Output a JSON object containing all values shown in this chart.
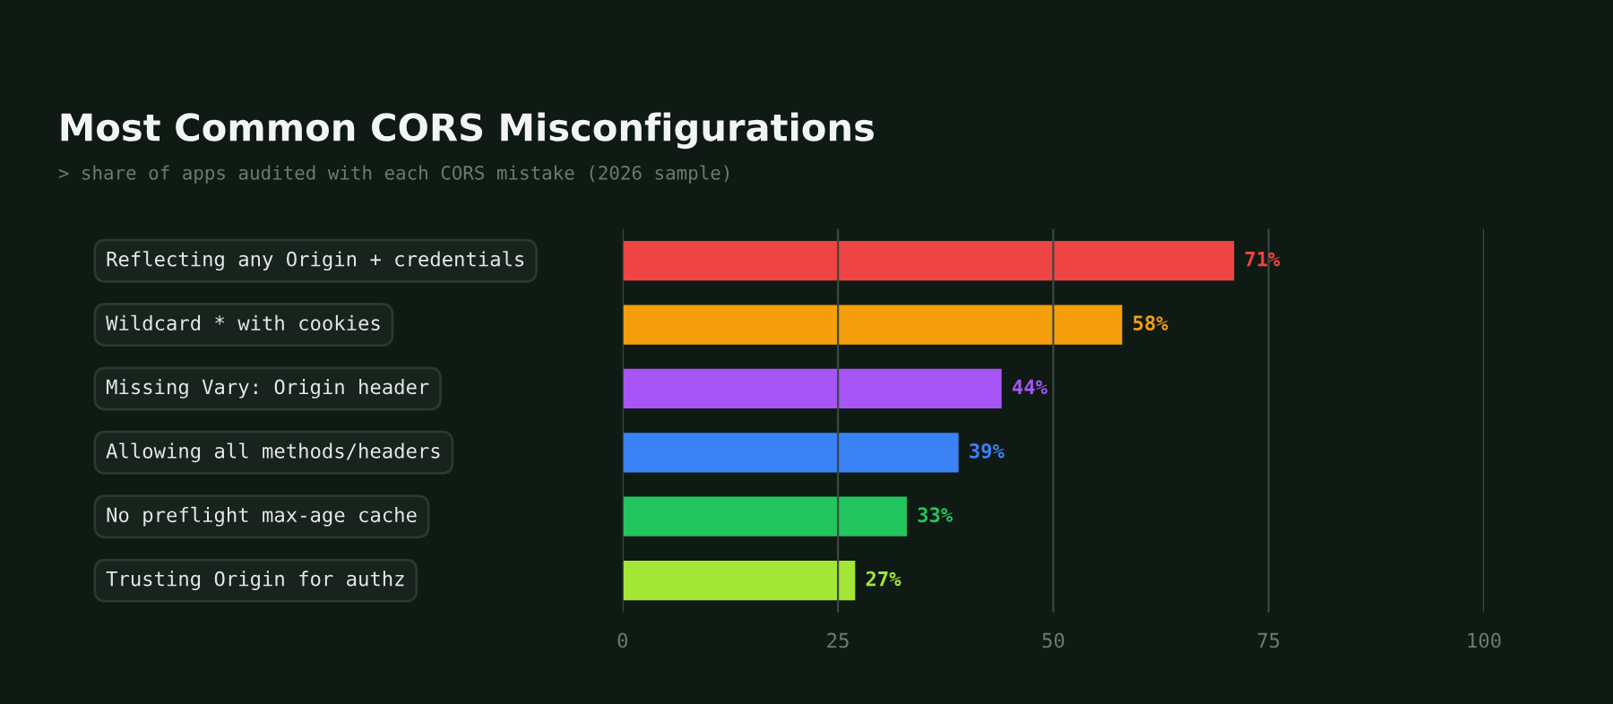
{
  "chart_data": {
    "type": "bar",
    "orientation": "horizontal",
    "title": "Most Common CORS Misconfigurations",
    "subtitle": "> share of apps audited with each CORS mistake (2026 sample)",
    "categories": [
      "Reflecting any Origin + credentials",
      "Wildcard * with cookies",
      "Missing Vary: Origin header",
      "Allowing all methods/headers",
      "No preflight max-age cache",
      "Trusting Origin for authz"
    ],
    "values": [
      71,
      58,
      44,
      39,
      33,
      27
    ],
    "colors": [
      "#ef4444",
      "#f59e0b",
      "#a855f7",
      "#3b82f6",
      "#22c55e",
      "#a3e635"
    ],
    "value_labels": [
      "71%",
      "58%",
      "44%",
      "39%",
      "33%",
      "27%"
    ],
    "xlim": [
      0,
      100
    ],
    "xticks": [
      0,
      25,
      50,
      75,
      100
    ],
    "grid": "x"
  }
}
